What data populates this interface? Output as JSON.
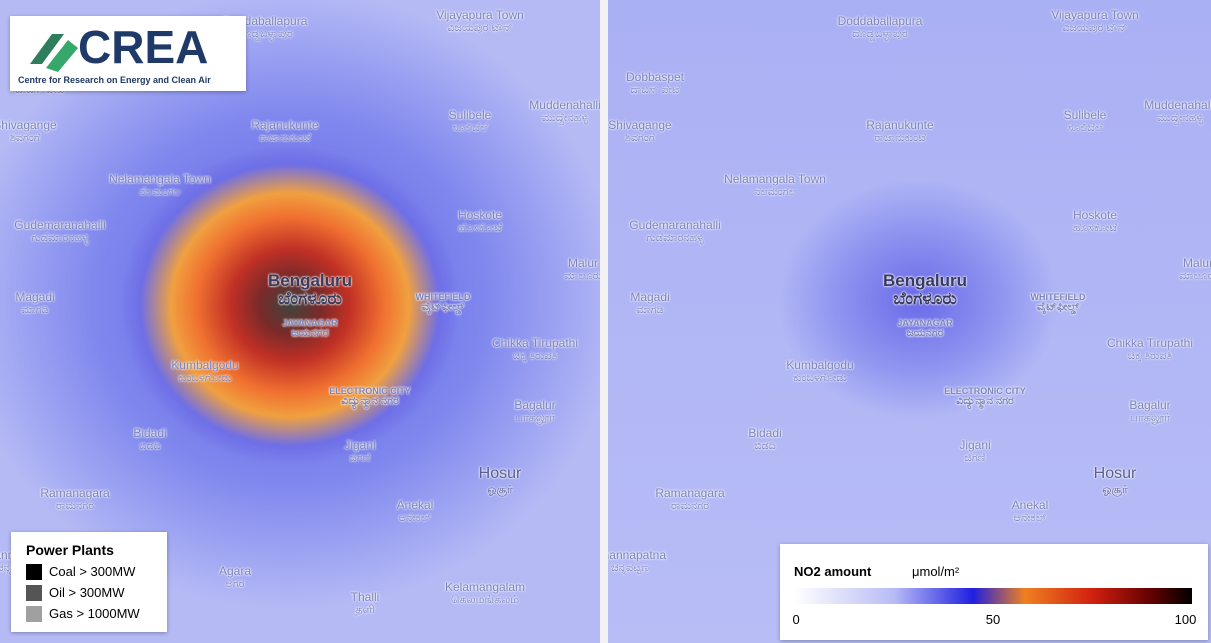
{
  "header": {
    "logo_title": "CREA",
    "logo_subtitle": "Centre for Research on Energy and Clean Air"
  },
  "places": [
    {
      "name": "Doddaballapura",
      "local": "ದೊಡ್ಡಬಳ್ಳಾಪುರ"
    },
    {
      "name": "Vijayapura Town",
      "local": "ವಿಜಯಪುರ ಟೌನ್"
    },
    {
      "name": "Dobbaspet",
      "local": "ದಾಬಸ್ ಪೇಟೆ"
    },
    {
      "name": "Shivagange",
      "local": "ಶಿವಗಂಗೆ"
    },
    {
      "name": "Rajanukunte",
      "local": "ರಾಜಾನುಕುಂಟೆ"
    },
    {
      "name": "Sulibele",
      "local": "ಸೂಲಿಬೆಲೆ"
    },
    {
      "name": "Muddenahalli",
      "local": "ಮುದ್ದೇನಹಳ್ಳಿ"
    },
    {
      "name": "Nelamangala Town",
      "local": "ನೆಲಮಂಗಲ"
    },
    {
      "name": "Gudemaranahalli",
      "local": "ಗುಡೆಮಾರನಹಳ್ಳಿ"
    },
    {
      "name": "Hoskote",
      "local": "ಹೊಸಕೋಟೆ"
    },
    {
      "name": "Magadi",
      "local": "ಮಾಗಡಿ"
    },
    {
      "name": "Bengaluru",
      "local": "ಬೆಂಗಳೂರು"
    },
    {
      "name": "WHITEFIELD",
      "local": "ವೈಟ್‌ಫೀಲ್ಡ್"
    },
    {
      "name": "JAYANAGAR",
      "local": "ಜಯನಗರ"
    },
    {
      "name": "Chikka Tirupathi",
      "local": "ಚಿಕ್ಕ ತಿರುಪತಿ"
    },
    {
      "name": "Kumbalgodu",
      "local": "ಕುಂಬಳಗೋಡು"
    },
    {
      "name": "ELECTRONIC CITY",
      "local": "ವಿದ್ಯುನ್ಮಾನ ನಗರ"
    },
    {
      "name": "Bagalur",
      "local": "பாகலூர்"
    },
    {
      "name": "Bidadi",
      "local": "ಬಿಡದಿ"
    },
    {
      "name": "Jigani",
      "local": "ಜಿಗಣಿ"
    },
    {
      "name": "Hosur",
      "local": "ஓசூர்"
    },
    {
      "name": "Ramanagara",
      "local": "ರಾಮನಗರ"
    },
    {
      "name": "Anekal",
      "local": "ಆನೇಕಲ್"
    },
    {
      "name": "Kelamangalam",
      "local": "கெலமங்கலம்"
    },
    {
      "name": "Thalli",
      "local": "தளி"
    },
    {
      "name": "Agara",
      "local": "ಅಗರ"
    },
    {
      "name": "Malur",
      "local": "ಮಾಲೂರು"
    },
    {
      "name": "Channapatna",
      "local": "ಚನ್ನಪಟ್ಟಣ"
    }
  ],
  "power_legend": {
    "title": "Power Plants",
    "items": [
      {
        "label": "Coal > 300MW",
        "color": "#000000"
      },
      {
        "label": "Oil > 300MW",
        "color": "#555555"
      },
      {
        "label": "Gas > 1000MW",
        "color": "#a0a0a0"
      }
    ]
  },
  "no2_legend": {
    "title": "NO2 amount",
    "unit": "μmol/m²",
    "ticks": [
      0,
      50,
      100
    ]
  }
}
